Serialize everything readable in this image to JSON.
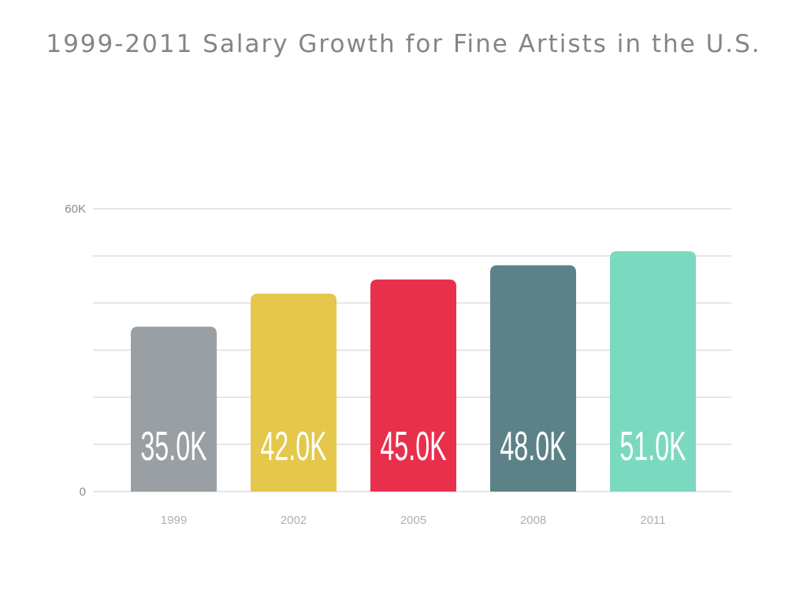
{
  "chart_data": {
    "type": "bar",
    "title": "1999-2011 Salary Growth for Fine Artists in the U.S.",
    "categories": [
      "1999",
      "2002",
      "2005",
      "2008",
      "2011"
    ],
    "values": [
      35000,
      42000,
      45000,
      48000,
      51000
    ],
    "value_labels": [
      "35.0K",
      "42.0K",
      "45.0K",
      "48.0K",
      "51.0K"
    ],
    "colors": [
      "#9a9fa3",
      "#e5c74b",
      "#e8304c",
      "#5c8288",
      "#7bd9c0"
    ],
    "ylim": [
      0,
      60000
    ],
    "y_ticks": [
      {
        "value": 0,
        "label": "0"
      },
      {
        "value": 60000,
        "label": "60K"
      }
    ],
    "gridlines": [
      0,
      10000,
      20000,
      30000,
      40000,
      50000,
      60000
    ],
    "grid": true,
    "xlabel": "",
    "ylabel": ""
  }
}
